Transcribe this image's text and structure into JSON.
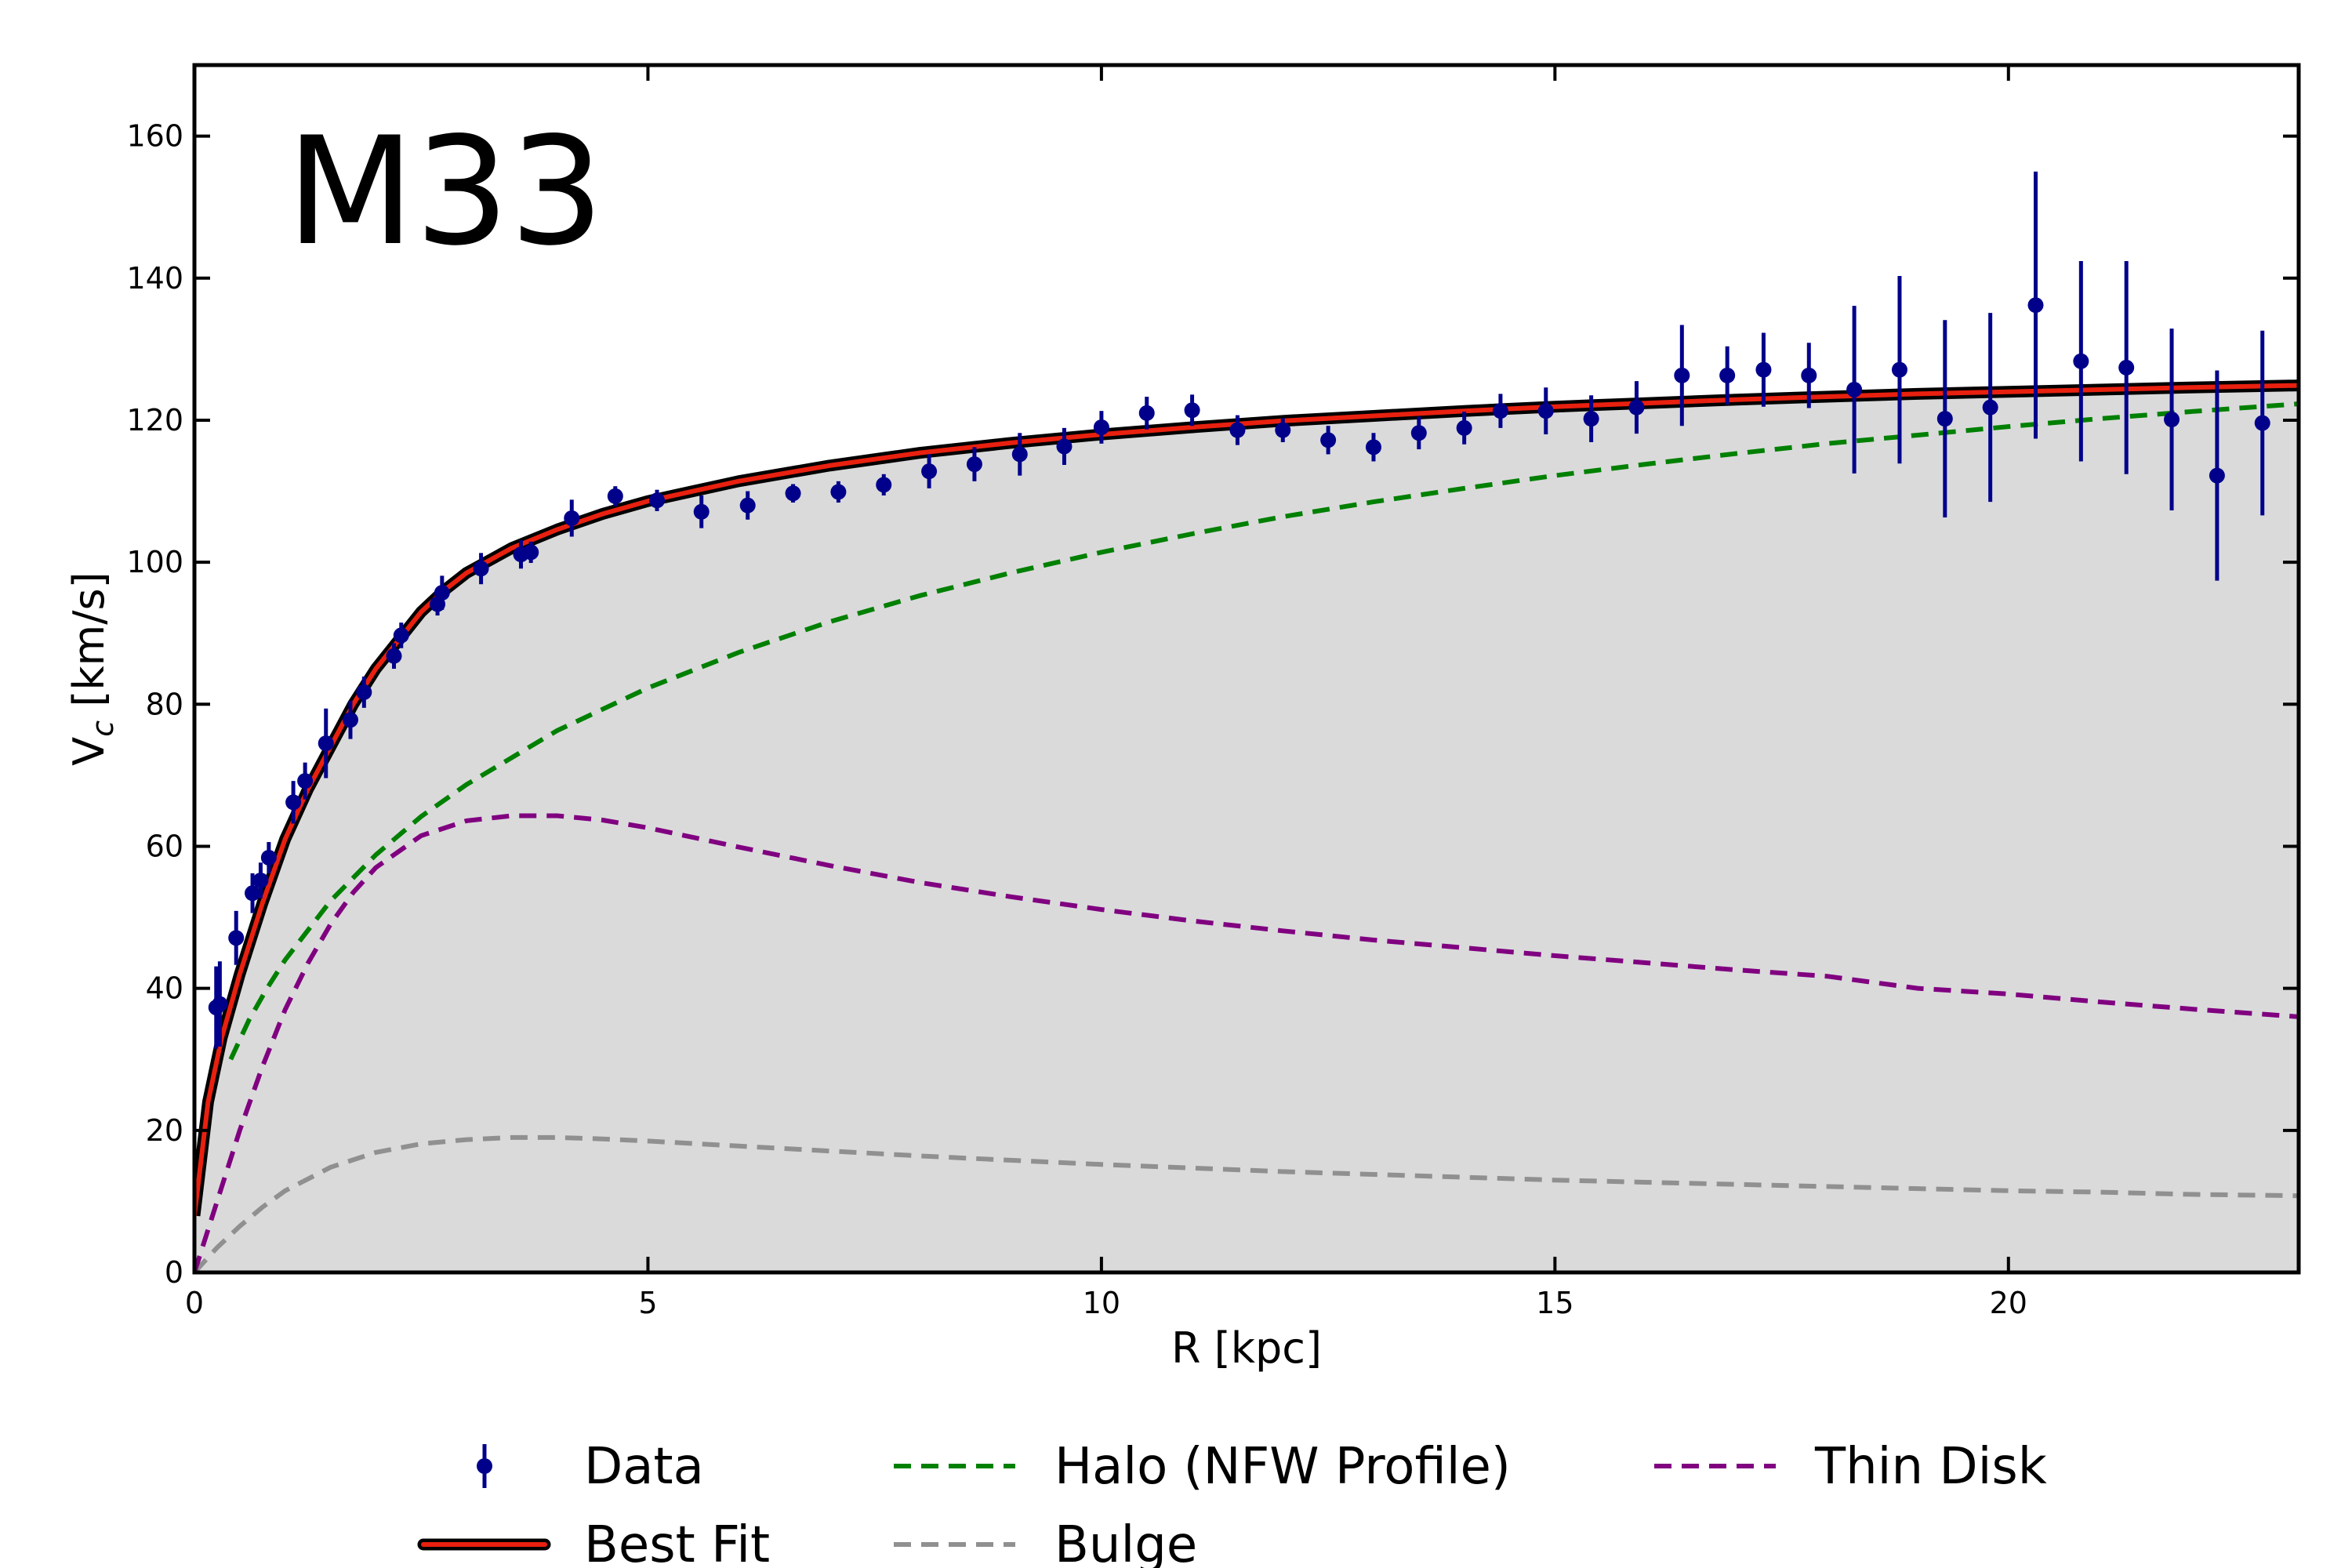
{
  "chart_data": {
    "type": "line",
    "title": "M33",
    "xlabel": "R [kpc]",
    "ylabel_main": "V",
    "ylabel_sub": "c",
    "ylabel_unit": " [km/s]",
    "xlim": [
      0,
      23.2
    ],
    "ylim": [
      0,
      170
    ],
    "xticks": [
      0,
      5,
      10,
      15,
      20
    ],
    "yticks": [
      0,
      20,
      40,
      60,
      80,
      100,
      120,
      140,
      160
    ],
    "grid": false,
    "legend_position": "bottom-center",
    "shaded_area_color": "#dadadb",
    "series": [
      {
        "name": "Data",
        "kind": "errorbar",
        "color": "#00008b",
        "x": [
          0.24,
          0.28,
          0.46,
          0.64,
          0.73,
          0.82,
          1.09,
          1.22,
          1.45,
          1.72,
          1.87,
          2.2,
          2.28,
          2.68,
          2.73,
          3.16,
          3.6,
          3.71,
          4.16,
          4.64,
          5.1,
          5.59,
          6.1,
          6.6,
          7.1,
          7.6,
          8.1,
          8.6,
          9.1,
          9.59,
          10.0,
          10.5,
          11.0,
          11.5,
          12.0,
          12.5,
          13.0,
          13.5,
          14.0,
          14.4,
          14.9,
          15.4,
          15.9,
          16.4,
          16.9,
          17.3,
          17.8,
          18.3,
          18.8,
          19.3,
          19.8,
          20.3,
          20.8,
          21.3,
          21.8,
          22.3,
          22.8
        ],
        "y": [
          37.3,
          37.8,
          47.1,
          53.4,
          55.2,
          58.4,
          66.2,
          69.2,
          74.5,
          77.8,
          81.7,
          86.8,
          89.7,
          94.1,
          95.7,
          99.1,
          101.1,
          101.4,
          106.2,
          109.3,
          108.7,
          107.1,
          108.0,
          109.7,
          109.9,
          110.9,
          112.8,
          113.8,
          115.2,
          116.3,
          119.0,
          121.0,
          121.4,
          118.6,
          118.6,
          117.2,
          116.2,
          118.2,
          118.9,
          121.3,
          121.3,
          120.2,
          121.8,
          126.3,
          126.3,
          127.1,
          126.3,
          124.3,
          127.1,
          120.2,
          121.8,
          136.2,
          128.3,
          127.4,
          120.1,
          112.2,
          119.6
        ],
        "yerr": [
          5.8,
          6.0,
          3.8,
          2.8,
          2.5,
          2.2,
          3.0,
          2.6,
          4.9,
          2.7,
          2.2,
          1.8,
          1.8,
          1.6,
          2.4,
          2.2,
          2.0,
          1.5,
          2.6,
          1.4,
          1.5,
          2.3,
          2.0,
          1.3,
          1.5,
          1.5,
          2.4,
          2.4,
          3.0,
          2.6,
          2.3,
          2.3,
          2.2,
          2.1,
          1.7,
          2.0,
          2.0,
          2.3,
          2.3,
          2.4,
          3.3,
          3.3,
          3.7,
          7.1,
          4.1,
          5.2,
          4.6,
          11.8,
          13.2,
          13.9,
          13.3,
          18.8,
          14.1,
          15.0,
          12.8,
          14.8,
          13.0
        ]
      },
      {
        "name": "Best Fit",
        "kind": "line",
        "color": "#e8200f",
        "outline": "#000000",
        "x": [
          0,
          0.15,
          0.3,
          0.5,
          0.75,
          1.0,
          1.25,
          1.5,
          1.75,
          2.0,
          2.25,
          2.5,
          2.75,
          3.0,
          3.5,
          4.0,
          4.5,
          5.0,
          6.0,
          7.0,
          8.0,
          9.0,
          10.0,
          11.0,
          12.0,
          13.0,
          14.0,
          15.0,
          16.0,
          17.0,
          18.0,
          19.0,
          20.0,
          21.0,
          22.0,
          23.2
        ],
        "values": [
          8,
          24,
          33,
          42,
          52,
          61,
          68,
          74,
          80,
          85,
          89,
          93,
          96,
          98.5,
          102,
          104.6,
          106.8,
          108.6,
          111.4,
          113.6,
          115.4,
          116.8,
          118.0,
          119.0,
          119.9,
          120.6,
          121.3,
          121.9,
          122.4,
          122.9,
          123.3,
          123.7,
          124.0,
          124.3,
          124.6,
          124.9
        ]
      },
      {
        "name": "Halo (NFW Profile)",
        "kind": "dashed",
        "color": "#008000",
        "x": [
          0.4,
          0.6,
          0.8,
          1.0,
          1.5,
          2.0,
          2.5,
          3.0,
          4.0,
          5.0,
          6.0,
          7.0,
          8.0,
          9.0,
          10.0,
          11.0,
          12.0,
          13.0,
          14.0,
          15.0,
          16.0,
          17.0,
          18.0,
          19.0,
          20.0,
          21.0,
          22.0,
          23.2
        ],
        "values": [
          30,
          35.5,
          40,
          44,
          52.3,
          58.8,
          64.2,
          68.7,
          76.3,
          82.3,
          87.3,
          91.6,
          95.3,
          98.5,
          101.4,
          104.0,
          106.4,
          108.5,
          110.4,
          112.2,
          113.8,
          115.3,
          116.7,
          117.9,
          119.1,
          120.2,
          121.2,
          122.3
        ]
      },
      {
        "name": "Thin Disk",
        "kind": "dashed",
        "color": "#800080",
        "x": [
          0,
          0.25,
          0.5,
          0.75,
          1.0,
          1.25,
          1.5,
          1.75,
          2.0,
          2.5,
          3.0,
          3.5,
          4.0,
          4.5,
          5.0,
          6.0,
          7.0,
          8.0,
          9.0,
          10.0,
          11.0,
          12.0,
          13.0,
          14.0,
          15.0,
          16.0,
          17.0,
          18.0,
          19.0,
          20.0,
          21.0,
          22.0,
          23.2
        ],
        "values": [
          0,
          10,
          20,
          29,
          37,
          43.5,
          49,
          53.5,
          57,
          61.5,
          63.6,
          64.3,
          64.3,
          63.7,
          62.6,
          59.9,
          57.3,
          54.9,
          52.9,
          51.1,
          49.5,
          48.1,
          46.8,
          45.7,
          44.6,
          43.6,
          42.6,
          41.7,
          40.0,
          39.2,
          38.1,
          37.1,
          36.0
        ]
      },
      {
        "name": "Bulge",
        "kind": "dashed",
        "color": "#909090",
        "x": [
          0,
          0.25,
          0.5,
          0.75,
          1.0,
          1.5,
          2.0,
          2.5,
          3.0,
          3.5,
          4.0,
          4.5,
          5.0,
          6.0,
          7.0,
          8.0,
          9.0,
          10.0,
          11.0,
          12.0,
          13.0,
          14.0,
          15.0,
          16.0,
          17.0,
          18.0,
          19.0,
          20.0,
          21.0,
          22.0,
          23.2
        ],
        "values": [
          0,
          3.5,
          6.5,
          9.2,
          11.5,
          14.8,
          16.9,
          18.1,
          18.7,
          19.0,
          19.0,
          18.8,
          18.5,
          17.8,
          17.1,
          16.4,
          15.8,
          15.2,
          14.7,
          14.2,
          13.8,
          13.4,
          13.0,
          12.7,
          12.4,
          12.1,
          11.8,
          11.5,
          11.3,
          11.0,
          10.8
        ]
      }
    ],
    "legend": [
      {
        "label": "Data",
        "series": "Data"
      },
      {
        "label": "Best Fit",
        "series": "Best Fit"
      },
      {
        "label": "Halo (NFW Profile)",
        "series": "Halo (NFW Profile)"
      },
      {
        "label": "Bulge",
        "series": "Bulge"
      },
      {
        "label": "Thin Disk",
        "series": "Thin Disk"
      }
    ]
  }
}
